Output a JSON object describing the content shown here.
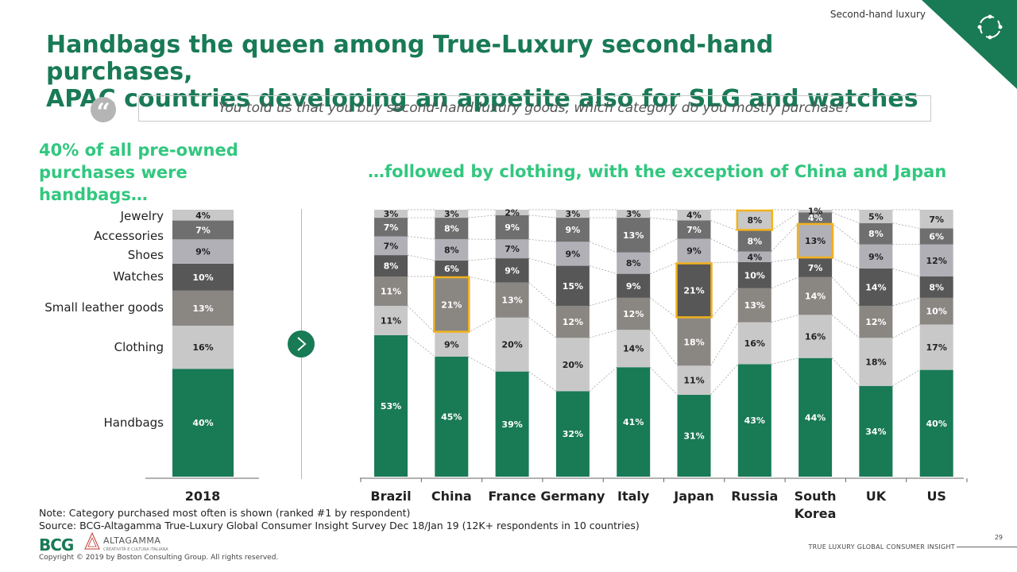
{
  "header": {
    "section": "Second-hand luxury",
    "title_line1": "Handbags the queen among True-Luxury second-hand purchases,",
    "title_line2": "APAC countries developing an appetite also for SLG and watches",
    "question": "You told us that you buy second-hand luxury goods, which category do you mostly purchase?",
    "left_heading_line1": "40% of all pre-owned",
    "left_heading_line2": "purchases were handbags…",
    "right_heading": "…followed by clothing, with the exception of China and Japan"
  },
  "colors": {
    "brand_green": "#197a56",
    "light_green": "#32c77f",
    "highlight": "#f2b21c",
    "Handbags": "#197a56",
    "Clothing": "#c8c8c8",
    "Small leather goods": "#8a8783",
    "Watches": "#575757",
    "Shoes": "#b1b0b7",
    "Accessories": "#6f6f6f",
    "Jewelry": "#c8c8c8"
  },
  "chart_data": [
    {
      "type": "bar",
      "stacked": true,
      "categories": [
        "2018"
      ],
      "series": [
        {
          "name": "Handbags",
          "values": [
            40
          ]
        },
        {
          "name": "Clothing",
          "values": [
            16
          ]
        },
        {
          "name": "Small leather goods",
          "values": [
            13
          ]
        },
        {
          "name": "Watches",
          "values": [
            10
          ]
        },
        {
          "name": "Shoes",
          "values": [
            9
          ]
        },
        {
          "name": "Accessories",
          "values": [
            7
          ]
        },
        {
          "name": "Jewelry",
          "values": [
            4
          ]
        }
      ]
    },
    {
      "type": "bar",
      "stacked": true,
      "categories": [
        "Brazil",
        "China",
        "France",
        "Germany",
        "Italy",
        "Japan",
        "Russia",
        "South Korea",
        "UK",
        "US"
      ],
      "series": [
        {
          "name": "Handbags",
          "values": [
            53,
            45,
            39,
            32,
            41,
            31,
            43,
            44,
            34,
            40
          ]
        },
        {
          "name": "Clothing",
          "values": [
            11,
            9,
            20,
            20,
            14,
            11,
            16,
            16,
            18,
            17
          ]
        },
        {
          "name": "Small leather goods",
          "values": [
            11,
            21,
            13,
            12,
            12,
            18,
            13,
            14,
            12,
            10
          ]
        },
        {
          "name": "Watches",
          "values": [
            8,
            6,
            9,
            15,
            9,
            21,
            10,
            7,
            14,
            8
          ]
        },
        {
          "name": "Shoes",
          "values": [
            7,
            8,
            7,
            9,
            8,
            9,
            4,
            13,
            9,
            12
          ]
        },
        {
          "name": "Accessories",
          "values": [
            7,
            8,
            9,
            9,
            13,
            7,
            8,
            4,
            8,
            6
          ]
        },
        {
          "name": "Jewelry",
          "values": [
            3,
            3,
            2,
            3,
            3,
            4,
            8,
            1,
            5,
            7
          ]
        }
      ],
      "highlighted": [
        {
          "category": "China",
          "series": "Small leather goods"
        },
        {
          "category": "Japan",
          "series": "Watches"
        },
        {
          "category": "Russia",
          "series": "Jewelry"
        },
        {
          "category": "South Korea",
          "series": "Shoes"
        }
      ]
    }
  ],
  "left_category_labels": [
    "Jewelry",
    "Accessories",
    "Shoes",
    "Watches",
    "Small leather goods",
    "Clothing",
    "Handbags"
  ],
  "footer": {
    "note": "Note: Category purchased most often is shown (ranked #1 by respondent)",
    "source": "Source: BCG-Altagamma True-Luxury Global Consumer Insight Survey Dec 18/Jan 19 (12K+ respondents in 10 countries)",
    "bcg_logo": "BCG",
    "altagamma_logo": "ALTAGAMMA",
    "altagamma_tagline": "CREATIVITÀ E CULTURA ITALIANA",
    "copyright": "Copyright © 2019 by Boston Consulting Group. All rights reserved.",
    "report": "TRUE LUXURY GLOBAL CONSUMER INSIGHT",
    "page": "29"
  }
}
